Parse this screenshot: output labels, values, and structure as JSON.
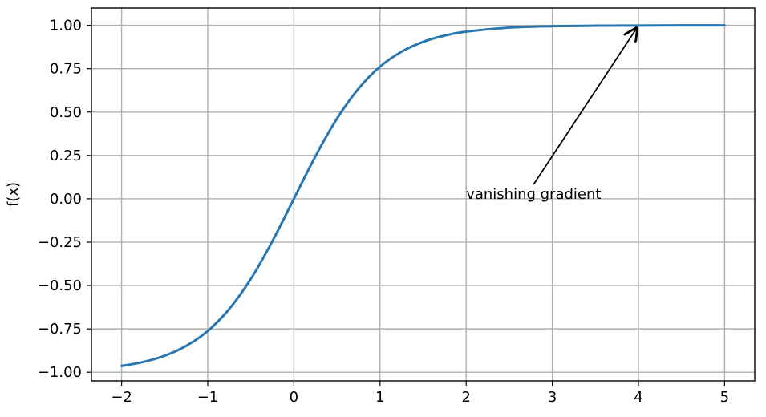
{
  "chart_data": {
    "type": "line",
    "title": "",
    "xlabel": "",
    "ylabel": "f(x)",
    "xlim": [
      -2.35,
      5.35
    ],
    "ylim": [
      -1.05,
      1.1
    ],
    "grid": true,
    "x_ticks": [
      -2,
      -1,
      0,
      1,
      2,
      3,
      4,
      5
    ],
    "x_tick_labels": [
      "−2",
      "−1",
      "0",
      "1",
      "2",
      "3",
      "4",
      "5"
    ],
    "y_ticks": [
      1.0,
      0.75,
      0.5,
      0.25,
      0.0,
      -0.25,
      -0.5,
      -0.75,
      -1.0
    ],
    "y_tick_labels": [
      "1.00",
      "0.75",
      "0.50",
      "0.25",
      "0.00",
      "−0.25",
      "−0.50",
      "−0.75",
      "−1.00"
    ],
    "series": [
      {
        "color": "#2876b0",
        "x": [
          -2.0,
          -1.75,
          -1.5,
          -1.25,
          -1.0,
          -0.75,
          -0.5,
          -0.25,
          0.0,
          0.25,
          0.5,
          0.75,
          1.0,
          1.25,
          1.5,
          1.75,
          2.0,
          2.5,
          3.0,
          3.5,
          4.0,
          4.5,
          5.0
        ],
        "y": [
          -0.964,
          -0.941,
          -0.905,
          -0.848,
          -0.762,
          -0.635,
          -0.462,
          -0.245,
          0.0,
          0.245,
          0.462,
          0.635,
          0.762,
          0.848,
          0.905,
          0.941,
          0.964,
          0.987,
          0.995,
          0.998,
          0.999,
          1.0,
          1.0
        ]
      }
    ],
    "annotations": [
      {
        "text": "vanishing gradient",
        "text_x": 2.0,
        "text_y": 0.0,
        "arrow_to_x": 4.0,
        "arrow_to_y": 0.999
      }
    ]
  }
}
